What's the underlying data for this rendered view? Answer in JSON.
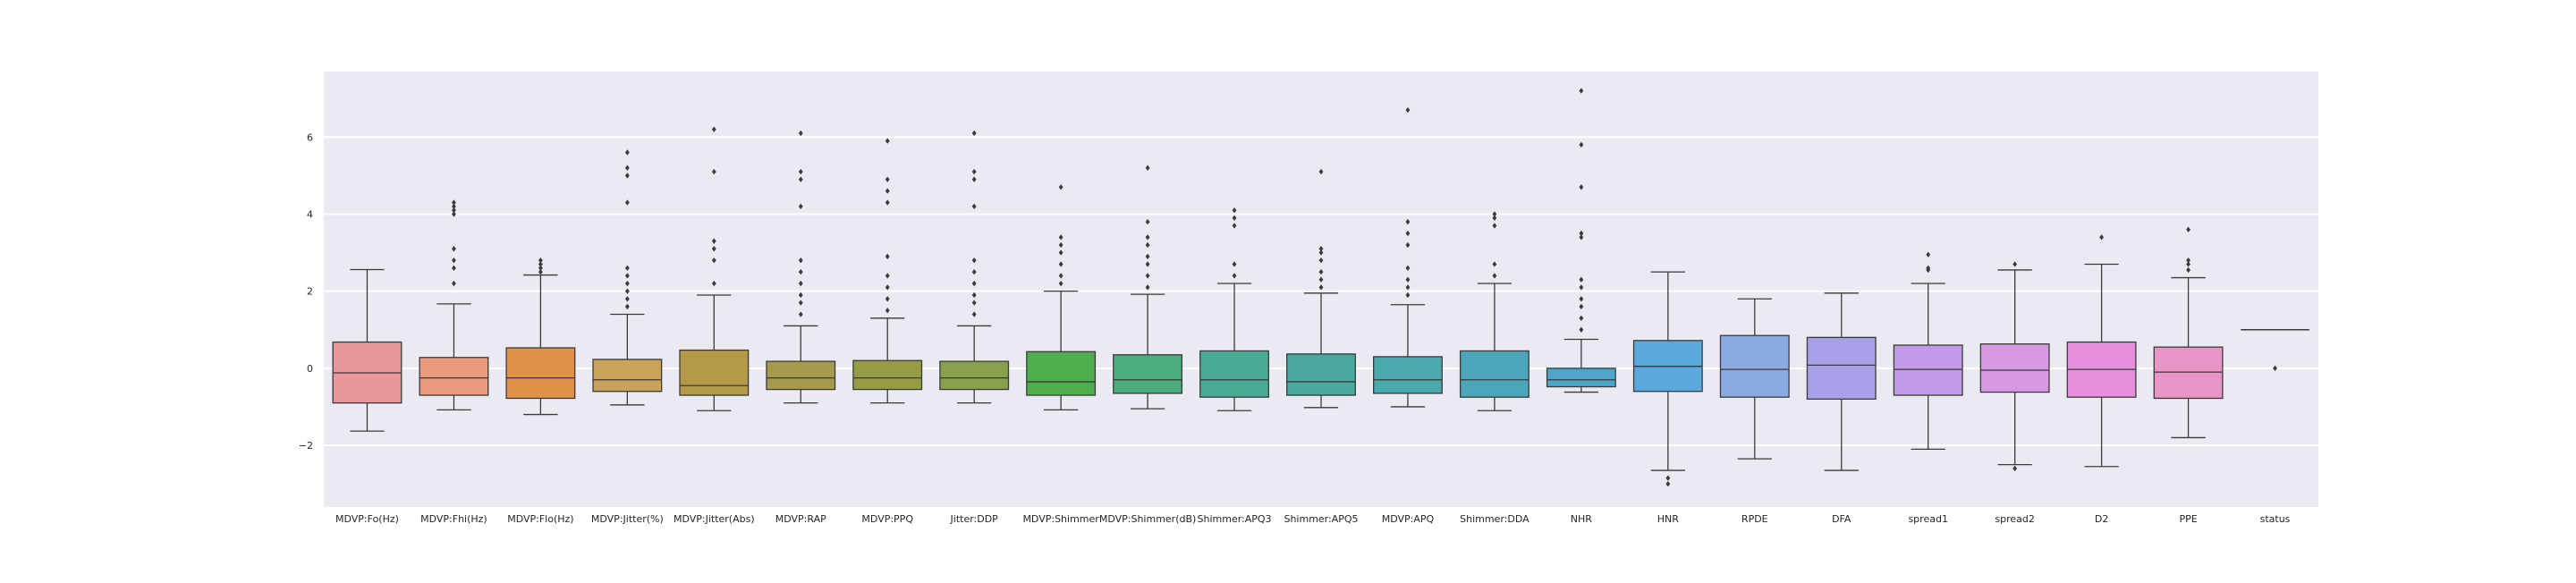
{
  "chart_data": {
    "type": "box",
    "title": "",
    "xlabel": "",
    "ylabel": "",
    "ylim": [
      -3.6,
      7.7
    ],
    "y_ticks": [
      -2,
      0,
      2,
      4,
      6
    ],
    "grid": true,
    "legend": "none",
    "colors": {
      "background": "#eaeaf2",
      "grid": "#ffffff",
      "box_edge": "#3a3a3a",
      "outlier": "#3a3a3a",
      "tick_text": "#262626"
    },
    "categories": [
      "MDVP:Fo(Hz)",
      "MDVP:Fhi(Hz)",
      "MDVP:Flo(Hz)",
      "MDVP:Jitter(%)",
      "MDVP:Jitter(Abs)",
      "MDVP:RAP",
      "MDVP:PPQ",
      "Jitter:DDP",
      "MDVP:Shimmer",
      "MDVP:Shimmer(dB)",
      "Shimmer:APQ3",
      "Shimmer:APQ5",
      "MDVP:APQ",
      "Shimmer:DDA",
      "NHR",
      "HNR",
      "RPDE",
      "DFA",
      "spread1",
      "spread2",
      "D2",
      "PPE",
      "status"
    ],
    "box_colors": [
      "#e9969d",
      "#ec9a7d",
      "#de9148",
      "#c9a35c",
      "#b49a48",
      "#a69b4c",
      "#969c45",
      "#88a049",
      "#4fae4e",
      "#4cad7d",
      "#49ab93",
      "#4aa89f",
      "#49a9ac",
      "#4aa7b9",
      "#4ca6c9",
      "#5ba8dc",
      "#8aaae4",
      "#a8a1ea",
      "#c39ae7",
      "#d998e4",
      "#e68fdc",
      "#e994c7",
      "#ea97b1"
    ],
    "boxes": [
      {
        "q1": -0.9,
        "median": -0.12,
        "q3": 0.68,
        "whisker_low": -1.63,
        "whisker_high": 2.56,
        "outliers": []
      },
      {
        "q1": -0.7,
        "median": -0.25,
        "q3": 0.28,
        "whisker_low": -1.08,
        "whisker_high": 1.67,
        "outliers": [
          2.2,
          2.6,
          2.8,
          3.1,
          4.0,
          4.1,
          4.2,
          4.3
        ]
      },
      {
        "q1": -0.78,
        "median": -0.25,
        "q3": 0.53,
        "whisker_low": -1.2,
        "whisker_high": 2.42,
        "outliers": [
          2.5,
          2.6,
          2.7,
          2.8
        ]
      },
      {
        "q1": -0.6,
        "median": -0.3,
        "q3": 0.23,
        "whisker_low": -0.95,
        "whisker_high": 1.4,
        "outliers": [
          1.6,
          1.8,
          2.0,
          2.2,
          2.4,
          2.6,
          4.3,
          5.0,
          5.2,
          5.6
        ]
      },
      {
        "q1": -0.7,
        "median": -0.45,
        "q3": 0.47,
        "whisker_low": -1.1,
        "whisker_high": 1.9,
        "outliers": [
          2.2,
          2.8,
          3.1,
          3.3,
          5.1,
          6.2
        ]
      },
      {
        "q1": -0.55,
        "median": -0.25,
        "q3": 0.18,
        "whisker_low": -0.9,
        "whisker_high": 1.1,
        "outliers": [
          1.4,
          1.7,
          1.9,
          2.2,
          2.5,
          2.8,
          4.2,
          4.9,
          5.1,
          6.1
        ]
      },
      {
        "q1": -0.55,
        "median": -0.25,
        "q3": 0.2,
        "whisker_low": -0.9,
        "whisker_high": 1.3,
        "outliers": [
          1.5,
          1.8,
          2.1,
          2.4,
          2.9,
          4.3,
          4.6,
          4.9,
          5.9
        ]
      },
      {
        "q1": -0.55,
        "median": -0.25,
        "q3": 0.18,
        "whisker_low": -0.9,
        "whisker_high": 1.1,
        "outliers": [
          1.4,
          1.7,
          1.9,
          2.2,
          2.5,
          2.8,
          4.2,
          4.9,
          5.1,
          6.1
        ]
      },
      {
        "q1": -0.7,
        "median": -0.35,
        "q3": 0.43,
        "whisker_low": -1.08,
        "whisker_high": 2.0,
        "outliers": [
          2.2,
          2.4,
          2.7,
          3.0,
          3.2,
          3.4,
          4.7
        ]
      },
      {
        "q1": -0.65,
        "median": -0.3,
        "q3": 0.35,
        "whisker_low": -1.05,
        "whisker_high": 1.92,
        "outliers": [
          2.1,
          2.4,
          2.7,
          2.9,
          3.2,
          3.4,
          3.8,
          5.2
        ]
      },
      {
        "q1": -0.75,
        "median": -0.3,
        "q3": 0.45,
        "whisker_low": -1.1,
        "whisker_high": 2.2,
        "outliers": [
          2.4,
          2.7,
          3.7,
          3.9,
          4.1
        ]
      },
      {
        "q1": -0.7,
        "median": -0.35,
        "q3": 0.37,
        "whisker_low": -1.02,
        "whisker_high": 1.95,
        "outliers": [
          2.1,
          2.3,
          2.5,
          2.8,
          3.0,
          3.1,
          5.1
        ]
      },
      {
        "q1": -0.65,
        "median": -0.3,
        "q3": 0.3,
        "whisker_low": -1.0,
        "whisker_high": 1.65,
        "outliers": [
          1.9,
          2.1,
          2.3,
          2.6,
          3.2,
          3.5,
          3.8,
          6.7
        ]
      },
      {
        "q1": -0.75,
        "median": -0.3,
        "q3": 0.45,
        "whisker_low": -1.1,
        "whisker_high": 2.2,
        "outliers": [
          2.4,
          2.7,
          3.7,
          3.9,
          4.0
        ]
      },
      {
        "q1": -0.48,
        "median": -0.3,
        "q3": 0.0,
        "whisker_low": -0.62,
        "whisker_high": 0.75,
        "outliers": [
          1.0,
          1.3,
          1.6,
          1.8,
          2.1,
          2.3,
          3.4,
          3.5,
          4.7,
          5.8,
          7.2
        ]
      },
      {
        "q1": -0.6,
        "median": 0.05,
        "q3": 0.72,
        "whisker_low": -2.65,
        "whisker_high": 2.5,
        "outliers": [
          -2.85,
          -3.0
        ]
      },
      {
        "q1": -0.75,
        "median": -0.03,
        "q3": 0.85,
        "whisker_low": -2.35,
        "whisker_high": 1.8,
        "outliers": []
      },
      {
        "q1": -0.8,
        "median": 0.08,
        "q3": 0.8,
        "whisker_low": -2.65,
        "whisker_high": 1.95,
        "outliers": []
      },
      {
        "q1": -0.7,
        "median": -0.03,
        "q3": 0.6,
        "whisker_low": -2.1,
        "whisker_high": 2.2,
        "outliers": [
          2.55,
          2.6,
          2.95
        ]
      },
      {
        "q1": -0.62,
        "median": -0.05,
        "q3": 0.63,
        "whisker_low": -2.5,
        "whisker_high": 2.55,
        "outliers": [
          -2.6,
          2.7
        ]
      },
      {
        "q1": -0.75,
        "median": -0.03,
        "q3": 0.68,
        "whisker_low": -2.55,
        "whisker_high": 2.7,
        "outliers": [
          3.4
        ]
      },
      {
        "q1": -0.78,
        "median": -0.1,
        "q3": 0.55,
        "whisker_low": -1.8,
        "whisker_high": 2.35,
        "outliers": [
          2.55,
          2.7,
          2.8,
          3.6
        ]
      },
      {
        "q1": 1.0,
        "median": 1.0,
        "q3": 1.0,
        "whisker_low": 1.0,
        "whisker_high": 1.0,
        "outliers": [
          0.0
        ]
      }
    ]
  }
}
